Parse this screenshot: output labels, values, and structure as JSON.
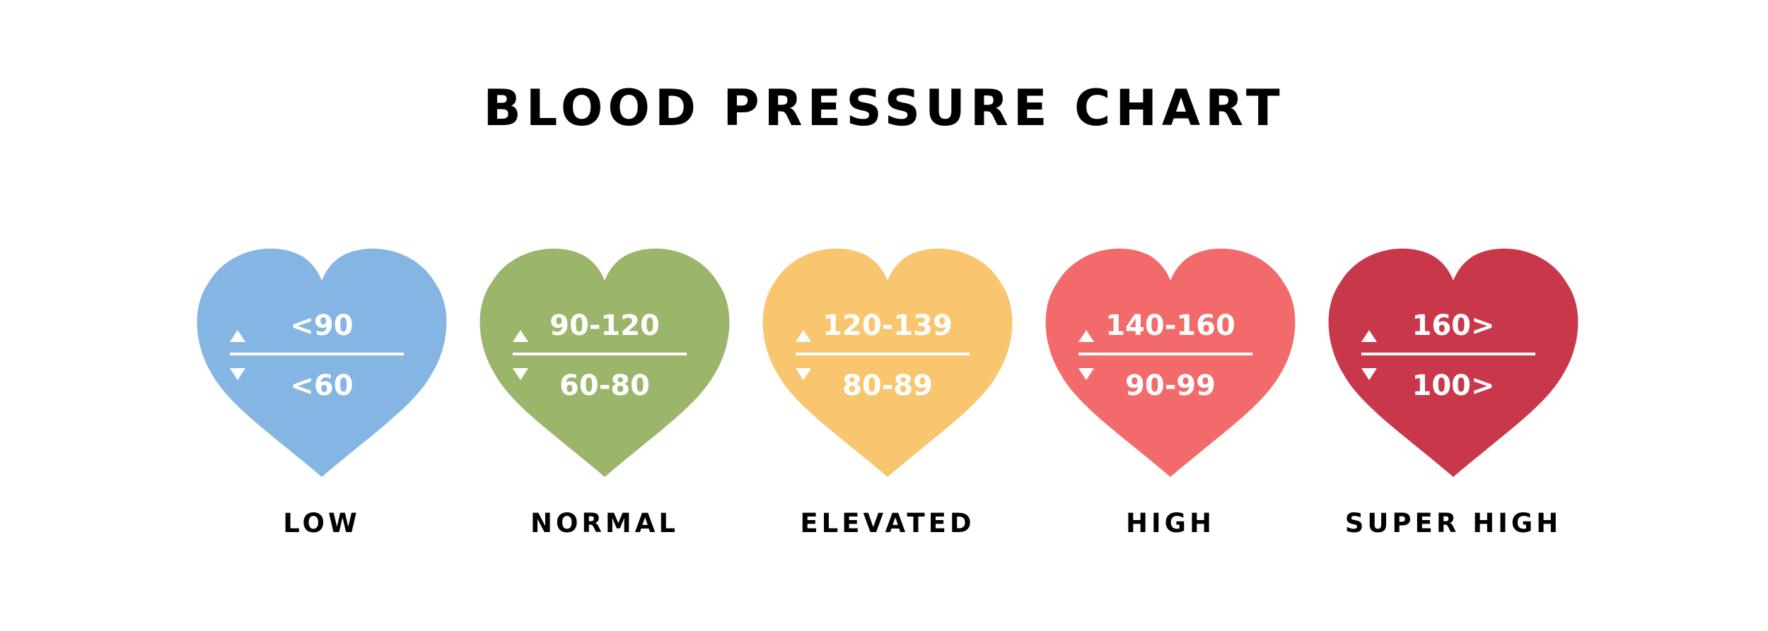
{
  "title": "BLOOD PRESSURE CHART",
  "categories": [
    {
      "label": "LOW",
      "systolic": "<90",
      "diastolic": "<60",
      "color": "#85B5E2"
    },
    {
      "label": "NORMAL",
      "systolic": "90-120",
      "diastolic": "60-80",
      "color": "#9BB56A"
    },
    {
      "label": "ELEVATED",
      "systolic": "120-139",
      "diastolic": "80-89",
      "color": "#F9C56F"
    },
    {
      "label": "HIGH",
      "systolic": "140-160",
      "diastolic": "90-99",
      "color": "#F26A6A"
    },
    {
      "label": "SUPER HIGH",
      "systolic": "160>",
      "diastolic": "100>",
      "color": "#C9374A"
    }
  ],
  "icons": {
    "up": "triangle-up-icon",
    "down": "triangle-down-icon",
    "shape": "heart-icon"
  }
}
